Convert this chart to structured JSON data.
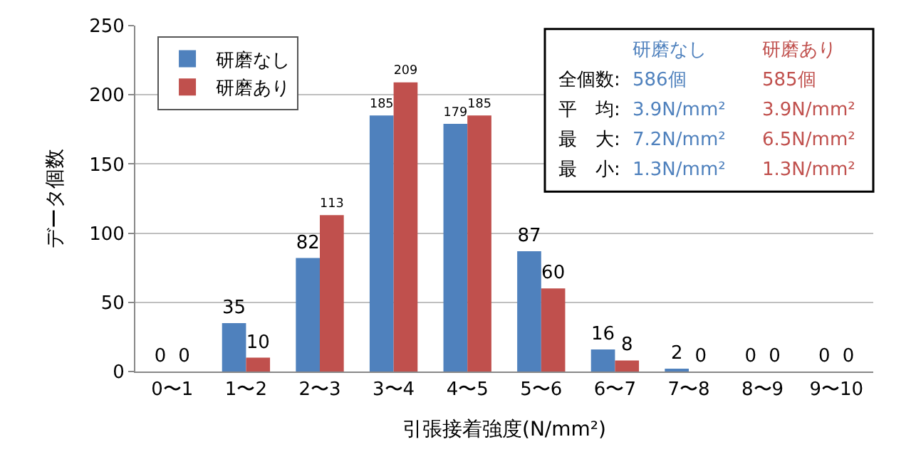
{
  "chart_data": {
    "type": "bar",
    "categories": [
      "0〜1",
      "1〜2",
      "2〜3",
      "3〜4",
      "4〜5",
      "5〜6",
      "6〜7",
      "7〜8",
      "8〜9",
      "9〜10"
    ],
    "series": [
      {
        "name": "研磨なし",
        "color": "#4f81bd",
        "values": [
          0,
          35,
          82,
          185,
          179,
          87,
          16,
          2,
          0,
          0
        ]
      },
      {
        "name": "研磨あり",
        "color": "#c0504d",
        "values": [
          0,
          10,
          113,
          209,
          185,
          60,
          8,
          0,
          0,
          0
        ]
      }
    ],
    "xlabel": "引張接着強度(N/mm²)",
    "ylabel": "データ個数",
    "ylim": [
      0,
      250
    ],
    "yticks": [
      0,
      50,
      100,
      150,
      200,
      250
    ],
    "grid": "y",
    "legend": "top left",
    "data_labels": true,
    "annotations": [
      "研磨なし",
      "研磨あり",
      "全個数:",
      "586個",
      "585個",
      "平　均:",
      "3.9N/mm²",
      "3.9N/mm²",
      "最　大:",
      "7.2N/mm²",
      "6.5N/mm²",
      "最　小:",
      "1.3N/mm²",
      "1.3N/mm²"
    ]
  }
}
